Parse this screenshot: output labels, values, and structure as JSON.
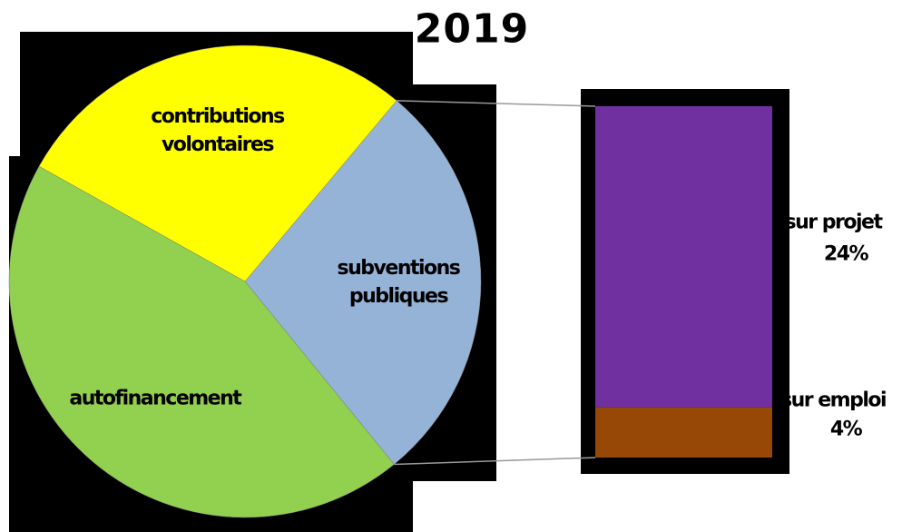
{
  "chart_data": {
    "type": "pie-of-bar",
    "title": "2019",
    "pie": {
      "categories": [
        "subventions publiques",
        "autofinancement",
        "contributions volontaires"
      ],
      "values": [
        28,
        44,
        28
      ],
      "colors": [
        "#95b3d7",
        "#92d050",
        "#ffff00"
      ]
    },
    "bar": {
      "categories": [
        "sur projet",
        "sur emploi"
      ],
      "values": [
        24,
        4
      ],
      "value_labels": [
        "24%",
        "4%"
      ],
      "colors": [
        "#7030a0",
        "#974706"
      ]
    }
  }
}
